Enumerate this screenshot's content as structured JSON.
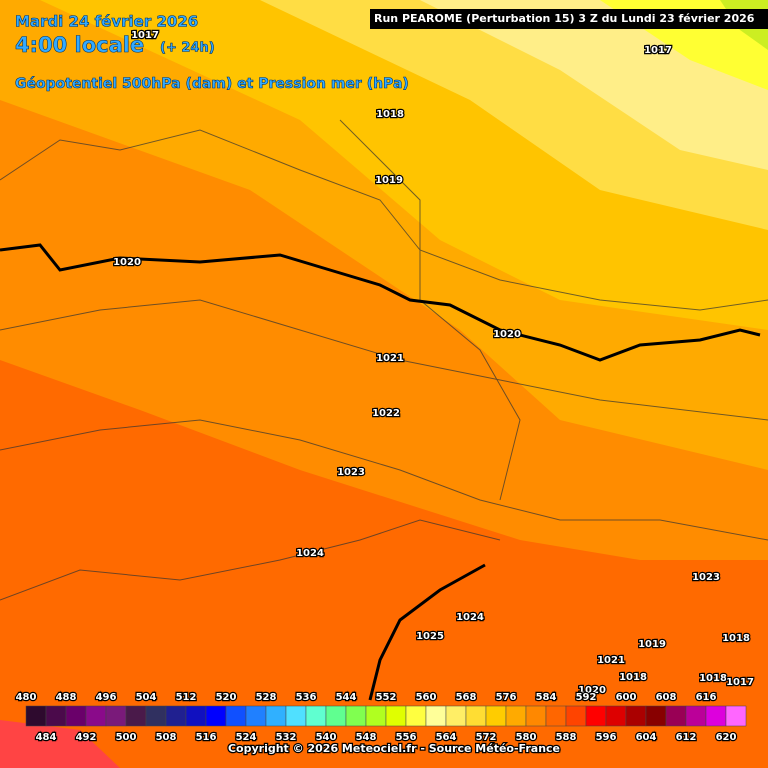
{
  "header": {
    "date": "Mardi 24 février 2026",
    "time": "4:00 locale",
    "lead": "(+ 24h)",
    "subtitle": "Géopotentiel 500hPa (dam) et Pression mer (hPa)",
    "run": "Run PEAROME (Perturbation 15) 3 Z du Lundi 23 février 2026"
  },
  "isobar_labels": [
    "1017",
    "1017",
    "1018",
    "1019",
    "1020",
    "1020",
    "1021",
    "1022",
    "1023",
    "1024",
    "1025",
    "1024",
    "1023",
    "1019",
    "1018",
    "1021",
    "1018",
    "1018",
    "1017",
    "1020"
  ],
  "legend": {
    "steps": [
      {
        "value": 480,
        "color": "#2e0a2e"
      },
      {
        "value": 484,
        "color": "#4b0a4b"
      },
      {
        "value": 488,
        "color": "#6a006a"
      },
      {
        "value": 492,
        "color": "#8a0a8a"
      },
      {
        "value": 496,
        "color": "#7a1a7a"
      },
      {
        "value": 500,
        "color": "#4a1a4a"
      },
      {
        "value": 504,
        "color": "#303060"
      },
      {
        "value": 508,
        "color": "#202090"
      },
      {
        "value": 512,
        "color": "#1010c0"
      },
      {
        "value": 516,
        "color": "#0000ff"
      },
      {
        "value": 520,
        "color": "#1050ff"
      },
      {
        "value": 524,
        "color": "#2080ff"
      },
      {
        "value": 528,
        "color": "#30b0ff"
      },
      {
        "value": 532,
        "color": "#50e0ff"
      },
      {
        "value": 536,
        "color": "#60ffd0"
      },
      {
        "value": 540,
        "color": "#60ff90"
      },
      {
        "value": 544,
        "color": "#80ff50"
      },
      {
        "value": 548,
        "color": "#b0ff20"
      },
      {
        "value": 552,
        "color": "#e0ff00"
      },
      {
        "value": 556,
        "color": "#ffff40"
      },
      {
        "value": 560,
        "color": "#ffff99"
      },
      {
        "value": 564,
        "color": "#ffee66"
      },
      {
        "value": 568,
        "color": "#ffdd33"
      },
      {
        "value": 572,
        "color": "#ffcc00"
      },
      {
        "value": 576,
        "color": "#ffaa00"
      },
      {
        "value": 580,
        "color": "#ff8800"
      },
      {
        "value": 584,
        "color": "#ff6600"
      },
      {
        "value": 588,
        "color": "#ff4400"
      },
      {
        "value": 592,
        "color": "#ff0000"
      },
      {
        "value": 596,
        "color": "#dd0000"
      },
      {
        "value": 600,
        "color": "#aa0000"
      },
      {
        "value": 604,
        "color": "#880000"
      },
      {
        "value": 608,
        "color": "#990055"
      },
      {
        "value": 612,
        "color": "#bb0099"
      },
      {
        "value": 616,
        "color": "#dd00dd"
      },
      {
        "value": 620,
        "color": "#ff66ff"
      }
    ]
  },
  "copyright": "Copyright © 2026 Meteociel.fr - Source Météo-France"
}
